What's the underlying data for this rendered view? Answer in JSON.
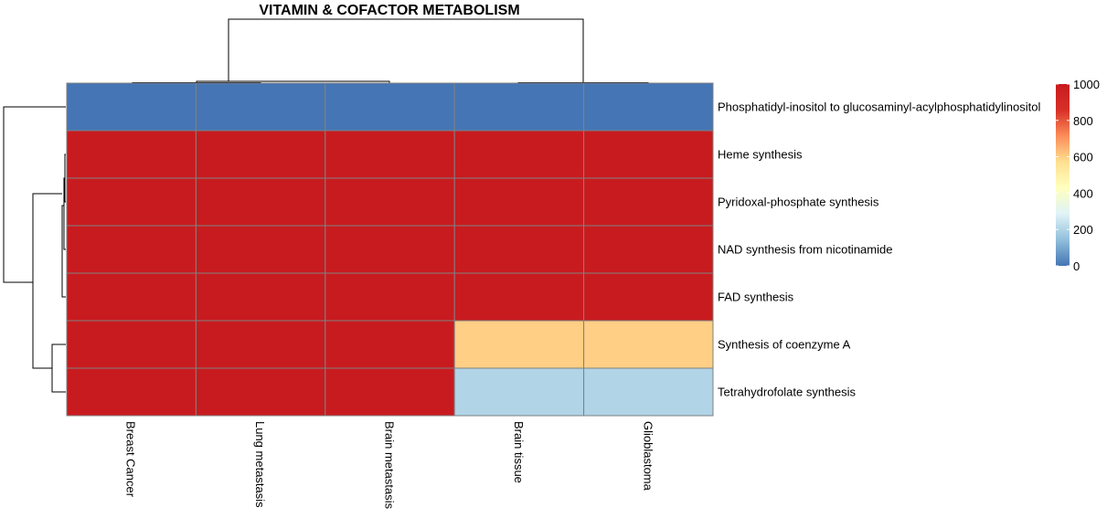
{
  "chart_data": {
    "type": "heatmap",
    "title": "VITAMIN & COFACTOR METABOLISM",
    "columns": [
      "Breast Cancer",
      "Lung metastasis",
      "Brain metastasis",
      "Brain tissue",
      "Glioblastoma"
    ],
    "rows": [
      "Phosphatidyl-inositol to glucosaminyl-acylphosphatidylinositol",
      "Heme synthesis",
      "Pyridoxal-phosphate synthesis",
      "NAD synthesis from nicotinamide",
      "FAD synthesis",
      "Synthesis of coenzyme A",
      "Tetrahydrofolate synthesis"
    ],
    "values": [
      [
        0,
        0,
        0,
        0,
        0
      ],
      [
        1000,
        1000,
        1000,
        1000,
        1000
      ],
      [
        1000,
        1000,
        1000,
        1000,
        1000
      ],
      [
        1000,
        1000,
        1000,
        1000,
        1000
      ],
      [
        1000,
        1000,
        1000,
        1000,
        1000
      ],
      [
        1000,
        1000,
        1000,
        600,
        600
      ],
      [
        1000,
        1000,
        1000,
        200,
        200
      ]
    ],
    "color_scale": {
      "min": 0,
      "max": 1000,
      "ticks": [
        0,
        200,
        400,
        600,
        800,
        1000
      ],
      "colors": [
        "#4575b4",
        "#91bfdb",
        "#e0f3f8",
        "#ffffbf",
        "#fee090",
        "#fc8d59",
        "#d73027",
        "#c81b1f"
      ]
    },
    "cell_border_color": "#808080",
    "legend_position": "right",
    "row_dendrogram": "left",
    "column_dendrogram": "top"
  }
}
